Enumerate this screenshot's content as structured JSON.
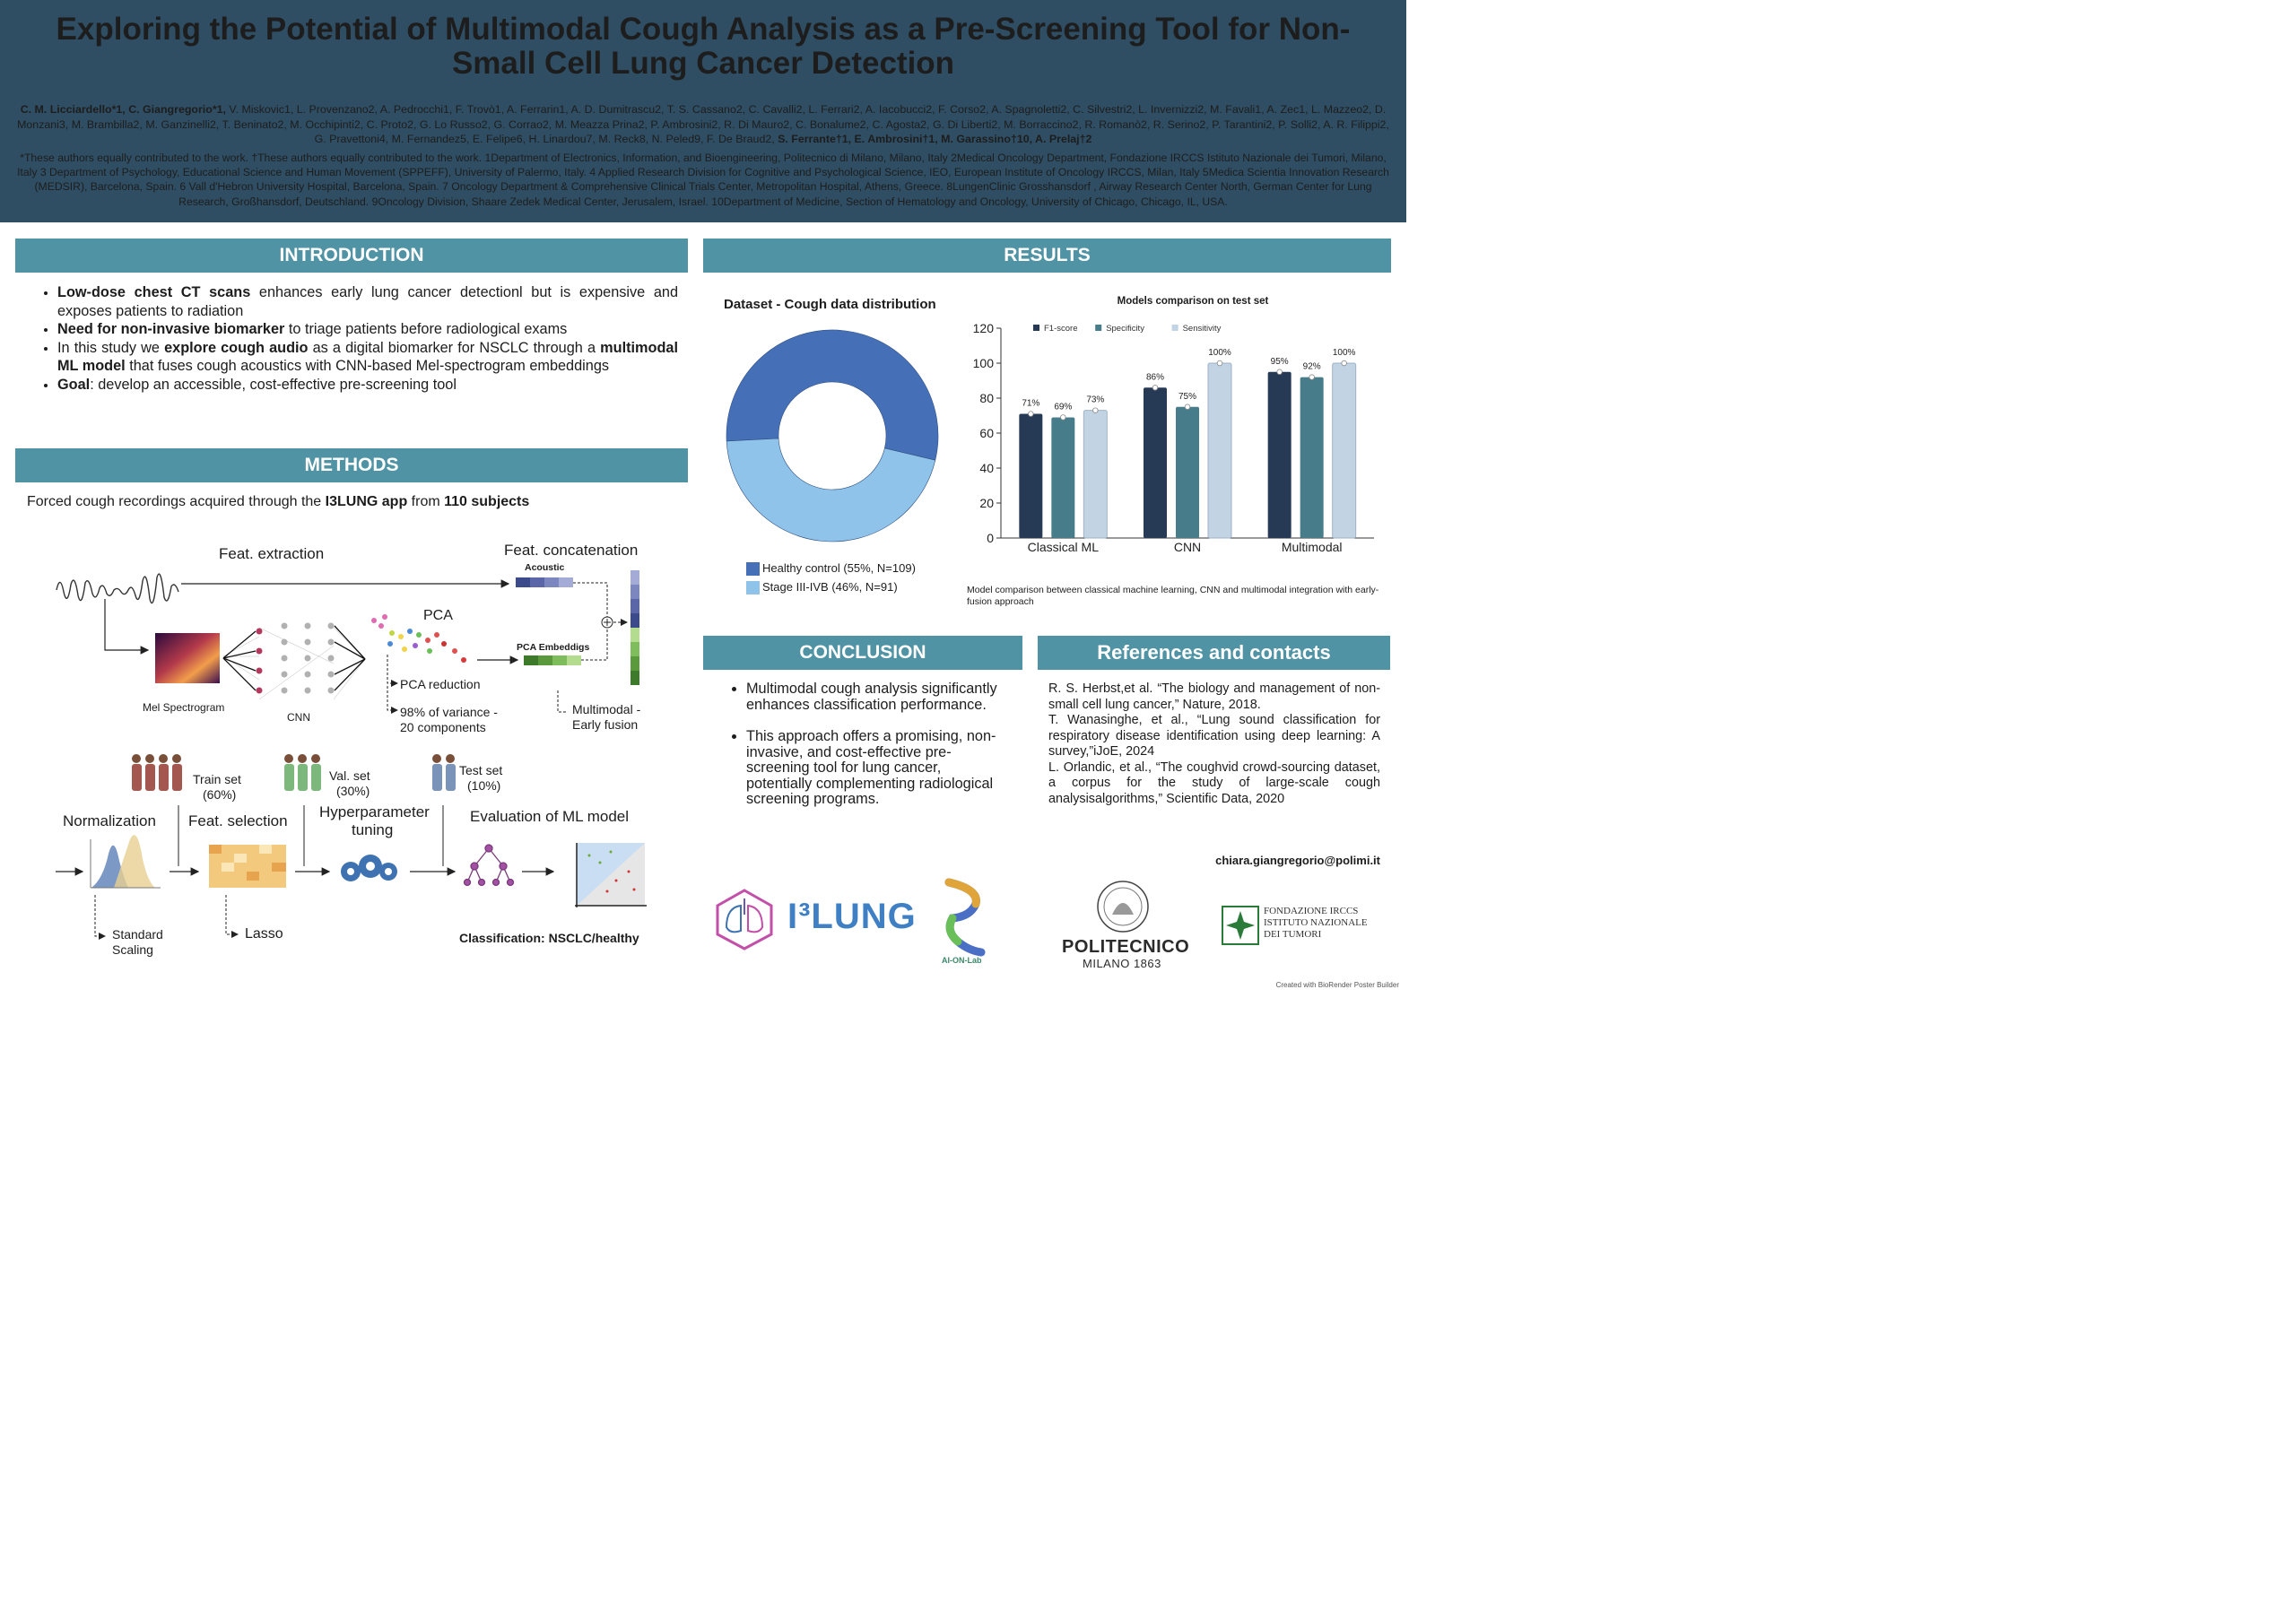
{
  "header": {
    "title": "Exploring the Potential of Multimodal Cough Analysis as a Pre-Screening Tool for Non-Small Cell Lung Cancer Detection",
    "authors_lead": "C. M. Licciardello*1, C. Giangregorio*1,",
    "authors_middle": " V. Miskovic1, L. Provenzano2, A. Pedrocchi1, F. Trovò1, A. Ferrarin1, A. D. Dumitrascu2, T. S. Cassano2, C. Cavalli2, L. Ferrari2, A. Iacobucci2, F. Corso2, A. Spagnoletti2, C. Silvestri2, L. Invernizzi2, M. Favali1, A. Zec1, L. Mazzeo2, D. Monzani3, M. Brambilla2, M. Ganzinelli2, T. Beninato2, M. Occhipinti2, C. Proto2, G. Lo Russo2, G. Corrao2, M. Meazza Prina2, P. Ambrosini2, R. Di Mauro2, C. Bonalume2, C. Agosta2, G. Di Liberti2, M. Borraccino2, R. Romanò2, R. Serino2, P. Tarantini2, P. Solli2, A. R. Filippi2, G. Pravettoni4, M. Fernandez5, E. Felipe6, H. Linardou7, M. Reck8, N. Peled9, F. De Braud2, ",
    "authors_tail": "S. Ferrante†1, E. Ambrosini†1, M. Garassino†10, A. Prelaj†2",
    "affiliations": "*These authors equally contributed to the work.  †These authors equally contributed to the work. 1Department of Electronics, Information, and Bioengineering, Politecnico di Milano, Milano, Italy 2Medical Oncology Department, Fondazione IRCCS Istituto Nazionale dei Tumori, Milano, Italy  3 Department of Psychology, Educational Science and Human Movement (SPPEFF), University of Palermo, Italy.   4 Applied Research Division for Cognitive and Psychological Science, IEO, European Institute of Oncology IRCCS, Milan, Italy   5Medica Scientia Innovation Research (MEDSIR), Barcelona, Spain.  6 Vall d'Hebron University Hospital, Barcelona, Spain.  7 Oncology Department & Comprehensive Clinical Trials Center, Metropolitan Hospital, Athens, Greece.  8LungenClinic Grosshansdorf , Airway Research Center North, German Center for Lung Research, Großhansdorf, Deutschland.  9Oncology Division, Shaare Zedek Medical Center, Jerusalem, Israel.  10Department of Medicine, Section of Hematology and Oncology, University of Chicago, Chicago, IL, USA."
  },
  "sections": {
    "introduction": "INTRODUCTION",
    "methods": "METHODS",
    "results": "RESULTS",
    "conclusion": "CONCLUSION",
    "references": "References and contacts"
  },
  "introduction": {
    "b1_bold": "Low-dose chest CT scans",
    "b1_rest": " enhances early lung cancer detectionl but is expensive and exposes patients to radiation",
    "b2_bold": "Need for non-invasive biomarker",
    "b2_rest": " to triage patients before radiological exams",
    "b3_a": "In this study we ",
    "b3_bold1": "explore cough audio",
    "b3_b": " as a digital biomarker for NSCLC through a ",
    "b3_bold2": "multimodal ML model",
    "b3_c": " that fuses cough acoustics with CNN-based Mel-spectrogram embeddings",
    "b4_bold": "Goal",
    "b4_rest": ": develop an accessible, cost-effective pre-screening tool"
  },
  "methods": {
    "lead_a": "Forced cough recordings acquired through the ",
    "lead_bold1": "I3LUNG app",
    "lead_b": "  from ",
    "lead_bold2": "110 subjects",
    "feat_extraction": "Feat. extraction",
    "feat_concat": "Feat. concatenation",
    "acoustic": "Acoustic",
    "pca": "PCA",
    "pca_embeddings": "PCA Embeddigs",
    "mel": "Mel Spectrogram",
    "cnn": "CNN",
    "pca_reduction": "PCA reduction",
    "variance_1": "98% of variance -",
    "variance_2": "20 components",
    "multimodal_1": "Multimodal -",
    "multimodal_2": "Early fusion",
    "train_1": "Train set",
    "train_2": "(60%)",
    "val_1": "Val. set",
    "val_2": "(30%)",
    "test_1": "Test set",
    "test_2": "(10%)",
    "normalization": "Normalization",
    "feat_selection": "Feat. selection",
    "hyper_1": "Hyperparameter",
    "hyper_2": "tuning",
    "evaluation": "Evaluation of ML model",
    "std_1": "Standard",
    "std_2": "Scaling",
    "lasso": "Lasso",
    "classification": "Classification: NSCLC/healthy"
  },
  "results": {
    "donut_title": "Dataset - Cough data distribution",
    "bar_title": "Models comparison on test set",
    "caption": "Model comparison between classical machine learning, CNN and multimodal integration with early-fusion approach"
  },
  "chart_data": [
    {
      "type": "pie",
      "title": "Dataset - Cough data distribution",
      "labels": [
        "Healthy control (55%, N=109)",
        "Stage III-IVB (46%, N=91)"
      ],
      "values": [
        109,
        91
      ],
      "colors": [
        "#4570b8",
        "#8fc3ea"
      ],
      "donut": true
    },
    {
      "type": "bar",
      "title": "Models comparison on test set",
      "categories": [
        "Classical ML",
        "CNN",
        "Multimodal"
      ],
      "series": [
        {
          "name": "F1-score",
          "values": [
            71,
            86,
            95
          ],
          "labels": [
            "71%",
            "86%",
            "95%"
          ],
          "color": "#273a55"
        },
        {
          "name": "Specificity",
          "values": [
            69,
            75,
            92
          ],
          "labels": [
            "69%",
            "75%",
            "92%"
          ],
          "color": "#477c8a"
        },
        {
          "name": "Sensitivity",
          "values": [
            73,
            100,
            100
          ],
          "labels": [
            "73%",
            "100%",
            "100%"
          ],
          "color": "#c2d3e4"
        }
      ],
      "ylim": [
        0,
        120
      ],
      "yticks": [
        "0",
        "20",
        "40",
        "60",
        "80",
        "100",
        "120"
      ],
      "legend": "top-left"
    }
  ],
  "conclusion": {
    "b1": "Multimodal cough analysis significantly enhances classification performance.",
    "b2": "This approach offers a  promising, non-invasive, and cost-effective pre-screening tool for lung cancer, potentially  complementing radiological screening programs."
  },
  "references": {
    "r1": "R. S. Herbst,et al. “The biology and management of non-small cell lung cancer,” Nature, 2018.",
    "r2": "T. Wanasinghe, et al., “Lung sound classification for respiratory disease identification using deep learning: A survey,”iJoE, 2024",
    "r3": "L. Orlandic, et al., “The coughvid crowd-sourcing dataset, a corpus for the study of large-scale cough analysisalgorithms,” Scientific Data, 2020",
    "email": "chiara.giangregorio@polimi.it"
  },
  "logos": {
    "i3lung": "I³LUNG",
    "aionlab": "AI-ON-Lab",
    "polimi_1": "POLITECNICO",
    "polimi_2": "MILANO 1863",
    "int_1": "FONDAZIONE IRCCS",
    "int_2": "ISTITUTO NAZIONALE",
    "int_3": "DEI TUMORI"
  },
  "credit": "Created with BioRender Poster Builder"
}
